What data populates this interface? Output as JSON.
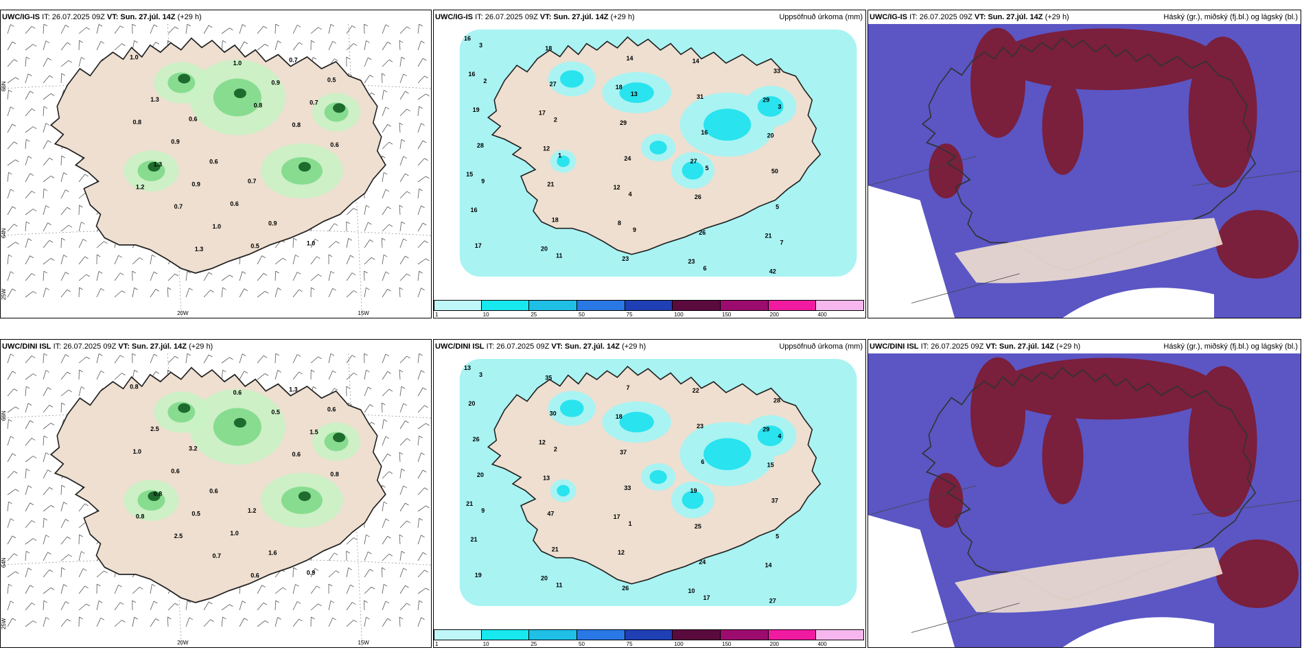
{
  "colors": {
    "land": "#eedfd0",
    "coast": "#222222",
    "precip": "#a9f3f3",
    "precip_mid": "#29e3ee",
    "green_light": "#c9f2c4",
    "green_mid": "#7fd98a",
    "green_dark": "#1f6b2e",
    "cloud_high": "#7a1f3c",
    "cloud_mid": "#5b56c4",
    "cloud_low": "#3a48e6"
  },
  "legend": {
    "ticks": [
      "1",
      "10",
      "25",
      "50",
      "75",
      "100",
      "150",
      "200",
      "400"
    ],
    "colors": [
      "#bff7f9",
      "#18e9ee",
      "#1fbfe6",
      "#2a78e6",
      "#1f3fb5",
      "#5b0a3e",
      "#9c0c6e",
      "#f01ba0",
      "#f6b7ee"
    ]
  },
  "axes": {
    "lon_labels": [
      "20W",
      "15W"
    ],
    "lat_labels": [
      "66N",
      "64N",
      "25W"
    ]
  },
  "panels": [
    {
      "id": "top-left",
      "model": "UWC/IG-IS",
      "it": "IT: 26.07.2025 09Z",
      "vt_label": "VT:",
      "vt": "Sun. 27.júl. 14Z",
      "lead": "(+29 h)",
      "title_right": "",
      "values": [
        "1.0",
        "0.6",
        "0.7",
        "1.0",
        "1.3",
        "0.6",
        "0.9",
        "0.5",
        "0.9",
        "0.6",
        "0.7",
        "0.8",
        "0.9",
        "0.5",
        "0.7",
        "1.3",
        "1.0",
        "0.9",
        "0.6",
        "0.7",
        "1.0",
        "0.8",
        "1.2",
        "1.3",
        "0.8"
      ]
    },
    {
      "id": "top-mid",
      "model": "UWC/IG-IS",
      "it": "IT: 26.07.2025 09Z",
      "vt_label": "VT:",
      "vt": "Sun. 27.júl. 14Z",
      "lead": "(+29 h)",
      "title_right": "Uppsöfnuð úrkoma (mm)",
      "values": [
        "16",
        "17",
        "12",
        "23",
        "29",
        "15",
        "20",
        "18",
        "27",
        "21",
        "16",
        "12",
        "8",
        "14",
        "20",
        "16",
        "18",
        "29",
        "26",
        "42",
        "19",
        "21",
        "23",
        "31",
        "50",
        "17",
        "27",
        "24",
        "26",
        "33",
        "28",
        "18",
        "14",
        "16",
        "5",
        "3",
        "2",
        "4",
        "6",
        "3",
        "9",
        "11",
        "13",
        "5",
        "7",
        "2",
        "1",
        "9"
      ]
    },
    {
      "id": "top-right",
      "model": "UWC/IG-IS",
      "it": "IT: 26.07.2025 09Z",
      "vt_label": "VT:",
      "vt": "Sun. 27.júl. 14Z",
      "lead": "(+29 h)",
      "title_right": "Háský (gr.), miðský (fj.bl.) og lágský (bl.)",
      "values": []
    },
    {
      "id": "bottom-left",
      "model": "UWC/DINI ISL",
      "it": "IT: 26.07.2025 09Z",
      "vt_label": "VT:",
      "vt": "Sun. 27.júl. 14Z",
      "lead": "(+29 h)",
      "title_right": "",
      "values": [
        "0.8",
        "3.2",
        "1.2",
        "0.9",
        "2.5",
        "0.6",
        "1.6",
        "0.6",
        "0.6",
        "1.0",
        "1.3",
        "1.0",
        "0.5",
        "0.6",
        "1.5",
        "0.8",
        "0.7",
        "0.5",
        "0.8",
        "2.5",
        "0.6",
        "0.6",
        "0.8"
      ]
    },
    {
      "id": "bottom-mid",
      "model": "UWC/DINI ISL",
      "it": "IT: 26.07.2025 09Z",
      "vt_label": "VT:",
      "vt": "Sun. 27.júl. 14Z",
      "lead": "(+29 h)",
      "title_right": "Uppsöfnuð úrkoma (mm)",
      "values": [
        "13",
        "12",
        "17",
        "10",
        "29",
        "21",
        "20",
        "18",
        "19",
        "14",
        "20",
        "13",
        "12",
        "22",
        "15",
        "21",
        "35",
        "37",
        "25",
        "27",
        "26",
        "47",
        "26",
        "23",
        "37",
        "19",
        "30",
        "33",
        "24",
        "28",
        "20",
        "21",
        "7",
        "6",
        "5",
        "3",
        "2",
        "1",
        "17",
        "4",
        "9",
        "11"
      ]
    },
    {
      "id": "bottom-right",
      "model": "UWC/DINI ISL",
      "it": "IT: 26.07.2025 09Z",
      "vt_label": "VT:",
      "vt": "Sun. 27.júl. 14Z",
      "lead": "(+29 h)",
      "title_right": "Háský (gr.), miðský (fj.bl.) og lágský (bl.)",
      "values": []
    }
  ]
}
